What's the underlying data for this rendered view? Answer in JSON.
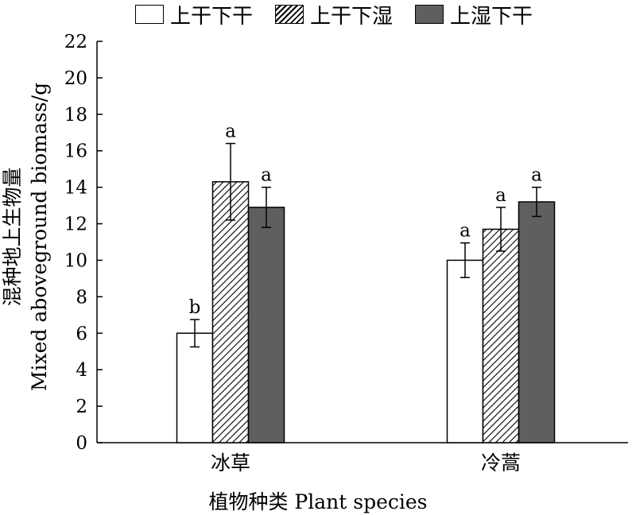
{
  "chart_data": {
    "type": "bar",
    "categories": [
      "冰草",
      "冷蒿"
    ],
    "series": [
      {
        "name": "上干下干",
        "values": [
          6.0,
          10.0
        ],
        "errors": [
          0.75,
          0.95
        ],
        "letters": [
          "b",
          "a"
        ],
        "fill": "white"
      },
      {
        "name": "上干下湿",
        "values": [
          14.3,
          11.7
        ],
        "errors": [
          2.1,
          1.2
        ],
        "letters": [
          "a",
          "a"
        ],
        "fill": "hatch"
      },
      {
        "name": "上湿下干",
        "values": [
          12.9,
          13.2
        ],
        "errors": [
          1.1,
          0.8
        ],
        "letters": [
          "a",
          "a"
        ],
        "fill": "dark"
      }
    ],
    "ylim": [
      0,
      22
    ],
    "yticks": [
      0,
      2,
      4,
      6,
      8,
      10,
      12,
      14,
      16,
      18,
      20,
      22
    ],
    "ylabel_cn": "混种地上生物量",
    "ylabel_en": "Mixed aboveground biomass/g",
    "xlabel": "植物种类 Plant species",
    "legend_position": "top",
    "grid": false
  },
  "colors": {
    "dark_bar": "#5f5f5f",
    "axis": "#000000"
  }
}
